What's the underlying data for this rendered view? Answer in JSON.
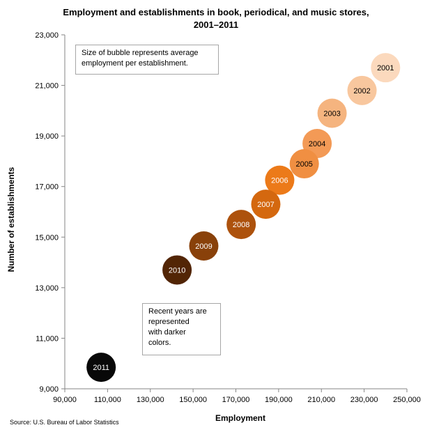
{
  "chart_data": {
    "type": "scatter",
    "title_lines": [
      "Employment and establishments in book, periodical, and music stores,",
      "2001–2011"
    ],
    "xlabel": "Employment",
    "ylabel": "Number of establishments",
    "xlim": [
      90000,
      250000
    ],
    "ylim": [
      9000,
      23000
    ],
    "x_ticks": [
      90000,
      110000,
      130000,
      150000,
      170000,
      190000,
      210000,
      230000,
      250000
    ],
    "x_tick_labels": [
      "90,000",
      "110,000",
      "130,000",
      "150,000",
      "170,000",
      "190,000",
      "210,000",
      "230,000",
      "250,000"
    ],
    "y_ticks": [
      9000,
      11000,
      13000,
      15000,
      17000,
      19000,
      21000,
      23000
    ],
    "y_tick_labels": [
      "9,000",
      "11,000",
      "13,000",
      "15,000",
      "17,000",
      "19,000",
      "21,000",
      "23,000"
    ],
    "grid": false,
    "points": [
      {
        "label": "2001",
        "x": 240000,
        "y": 21700,
        "color": "#fbd9bd",
        "label_color": "#000000"
      },
      {
        "label": "2002",
        "x": 229000,
        "y": 20800,
        "color": "#f8c79e",
        "label_color": "#000000"
      },
      {
        "label": "2003",
        "x": 215000,
        "y": 19900,
        "color": "#f5b47f",
        "label_color": "#000000"
      },
      {
        "label": "2004",
        "x": 208000,
        "y": 18700,
        "color": "#f39a56",
        "label_color": "#000000"
      },
      {
        "label": "2005",
        "x": 202000,
        "y": 17900,
        "color": "#f08f42",
        "label_color": "#000000"
      },
      {
        "label": "2006",
        "x": 190500,
        "y": 17250,
        "color": "#ec7a19",
        "label_color": "#ffffff"
      },
      {
        "label": "2007",
        "x": 184000,
        "y": 16300,
        "color": "#d4680f",
        "label_color": "#ffffff"
      },
      {
        "label": "2008",
        "x": 172500,
        "y": 15500,
        "color": "#ad520d",
        "label_color": "#ffffff"
      },
      {
        "label": "2009",
        "x": 155000,
        "y": 14650,
        "color": "#89410a",
        "label_color": "#ffffff"
      },
      {
        "label": "2010",
        "x": 142500,
        "y": 13700,
        "color": "#522505",
        "label_color": "#ffffff"
      },
      {
        "label": "2011",
        "x": 107000,
        "y": 9850,
        "color": "#080808",
        "label_color": "#ffffff"
      }
    ],
    "annotations": [
      {
        "lines": [
          "Size of bubble represents average",
          "employment per establishment."
        ]
      },
      {
        "lines": [
          "Recent years are",
          "represented",
          "with darker",
          "colors."
        ]
      }
    ],
    "source": "Source: U.S. Bureau of Labor Statistics"
  }
}
